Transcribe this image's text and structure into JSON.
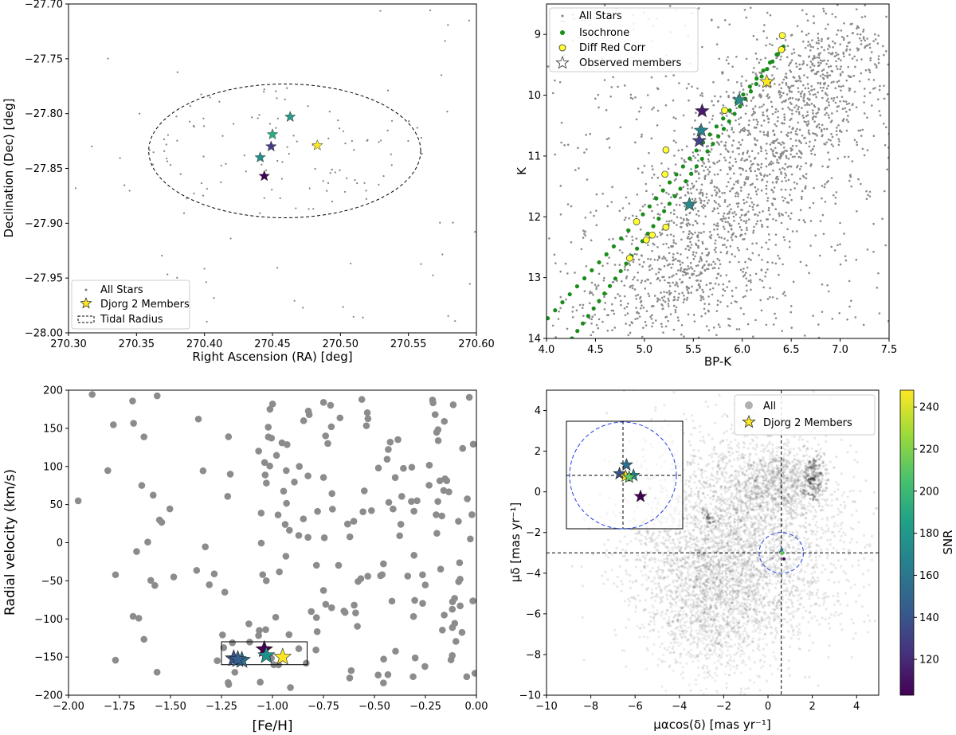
{
  "chart_data": [
    {
      "id": "sky",
      "type": "scatter",
      "xlabel": "Right Ascension (RA) [deg]",
      "ylabel": "Declination (Dec) [deg]",
      "xlim": [
        270.3,
        270.6
      ],
      "ylim": [
        -28.0,
        -27.7
      ],
      "xticks": [
        "270.30",
        "270.35",
        "270.40",
        "270.45",
        "270.50",
        "270.55",
        "270.60"
      ],
      "yticks": [
        "-28.00",
        "-27.95",
        "-27.90",
        "-27.85",
        "-27.80",
        "-27.75",
        "-27.70"
      ],
      "legend": [
        "All Stars",
        "Djorg 2 Members",
        "Tidal Radius"
      ],
      "legend_position": "lower-left",
      "tidal_circle": {
        "center": [
          270.459,
          -27.834
        ],
        "radius_ra": 0.1,
        "radius_dec": 0.061
      },
      "members": [
        {
          "ra": 270.463,
          "dec": -27.803,
          "color": "#2a9a8a"
        },
        {
          "ra": 270.45,
          "dec": -27.819,
          "color": "#2ab07f"
        },
        {
          "ra": 270.449,
          "dec": -27.83,
          "color": "#433e85"
        },
        {
          "ra": 270.441,
          "dec": -27.84,
          "color": "#21908d"
        },
        {
          "ra": 270.483,
          "dec": -27.829,
          "color": "#fde725"
        },
        {
          "ra": 270.444,
          "dec": -27.857,
          "color": "#440154"
        }
      ]
    },
    {
      "id": "cmd",
      "type": "scatter",
      "xlabel": "BP-K",
      "ylabel": "K",
      "xlim": [
        4.0,
        7.5
      ],
      "ylim": [
        14,
        8.5
      ],
      "xticks": [
        "4.0",
        "4.5",
        "5.0",
        "5.5",
        "6.0",
        "6.5",
        "7.0",
        "7.5"
      ],
      "yticks": [
        "9",
        "10",
        "11",
        "12",
        "13",
        "14"
      ],
      "legend": [
        "All Stars",
        "Isochrone",
        "Diff Red Corr",
        "Observed members"
      ],
      "legend_position": "upper-left",
      "diff_red_corr": [
        [
          6.41,
          9.02
        ],
        [
          6.4,
          9.25
        ],
        [
          6.26,
          9.78
        ],
        [
          5.82,
          10.25
        ],
        [
          5.22,
          10.9
        ],
        [
          5.21,
          11.3
        ],
        [
          4.92,
          12.08
        ],
        [
          5.08,
          12.3
        ],
        [
          5.02,
          12.38
        ],
        [
          5.22,
          12.17
        ],
        [
          4.85,
          12.68
        ]
      ],
      "observed_members": [
        {
          "x": 6.25,
          "y": 9.78,
          "color": "#fde725"
        },
        {
          "x": 5.97,
          "y": 10.08,
          "color": "#2a8f8c"
        },
        {
          "x": 5.59,
          "y": 10.26,
          "color": "#481a6c"
        },
        {
          "x": 5.58,
          "y": 10.58,
          "color": "#25858e"
        },
        {
          "x": 5.56,
          "y": 10.75,
          "color": "#414487"
        },
        {
          "x": 5.46,
          "y": 11.8,
          "color": "#29898c"
        }
      ]
    },
    {
      "id": "rv",
      "type": "scatter",
      "xlabel": "[Fe/H]",
      "ylabel": "Radial velocity (km/s)",
      "xlim": [
        -2.0,
        0.0
      ],
      "ylim": [
        -200,
        200
      ],
      "xticks": [
        "-2.00",
        "-1.75",
        "-1.50",
        "-1.25",
        "-1.00",
        "-0.75",
        "-0.50",
        "-0.25",
        "0.00"
      ],
      "yticks": [
        "-200",
        "-150",
        "-100",
        "-50",
        "0",
        "50",
        "100",
        "150",
        "200"
      ],
      "selection_box": {
        "x": [
          -1.25,
          -0.83
        ],
        "y": [
          -160,
          -130
        ]
      },
      "members": [
        {
          "feh": -1.19,
          "rv": -152,
          "color": "#3b528b"
        },
        {
          "feh": -1.15,
          "rv": -154,
          "color": "#2c728e"
        },
        {
          "feh": -1.04,
          "rv": -140,
          "color": "#440154"
        },
        {
          "feh": -1.03,
          "rv": -148,
          "color": "#21918c"
        },
        {
          "feh": -0.95,
          "rv": -150,
          "color": "#fde725"
        },
        {
          "feh": -1.17,
          "rv": -153,
          "color": "#355f8d"
        }
      ]
    },
    {
      "id": "pm",
      "type": "scatter",
      "xlabel": "μαcos(δ) [mas yr⁻¹]",
      "ylabel": "μδ [mas yr⁻¹]",
      "xlim": [
        -10,
        5
      ],
      "ylim": [
        -10,
        5
      ],
      "xticks": [
        "-10",
        "-8",
        "-6",
        "-4",
        "-2",
        "0",
        "2",
        "4"
      ],
      "yticks": [
        "-10",
        "-8",
        "-6",
        "-4",
        "-2",
        "0",
        "2",
        "4"
      ],
      "legend": [
        "All",
        "Djorg 2 Members"
      ],
      "legend_position": "upper-right",
      "cross": {
        "x": 0.6,
        "y": -3.0
      },
      "circle_radius": 1.0,
      "colorbar": {
        "label": "SNR",
        "min": 103,
        "max": 248,
        "ticks": [
          "120",
          "140",
          "160",
          "180",
          "200",
          "220",
          "240"
        ],
        "colormap": "viridis"
      },
      "members": [
        {
          "dx": -0.2,
          "dy": 0.1,
          "color": "#3b528b"
        },
        {
          "dx": 0.2,
          "dy": 0.6,
          "color": "#2c728e"
        },
        {
          "dx": 0.6,
          "dy": 0.0,
          "color": "#21918c"
        },
        {
          "dx": 0.15,
          "dy": -0.05,
          "color": "#fde725"
        },
        {
          "dx": 0.35,
          "dy": -0.1,
          "color": "#5ec962"
        },
        {
          "dx": 1.0,
          "dy": -1.2,
          "color": "#440154"
        }
      ]
    }
  ],
  "colors": {
    "gray": "#808080",
    "green": "#1a8c1a",
    "yellow": "#ffff33",
    "blue": "#1f3fe0"
  }
}
